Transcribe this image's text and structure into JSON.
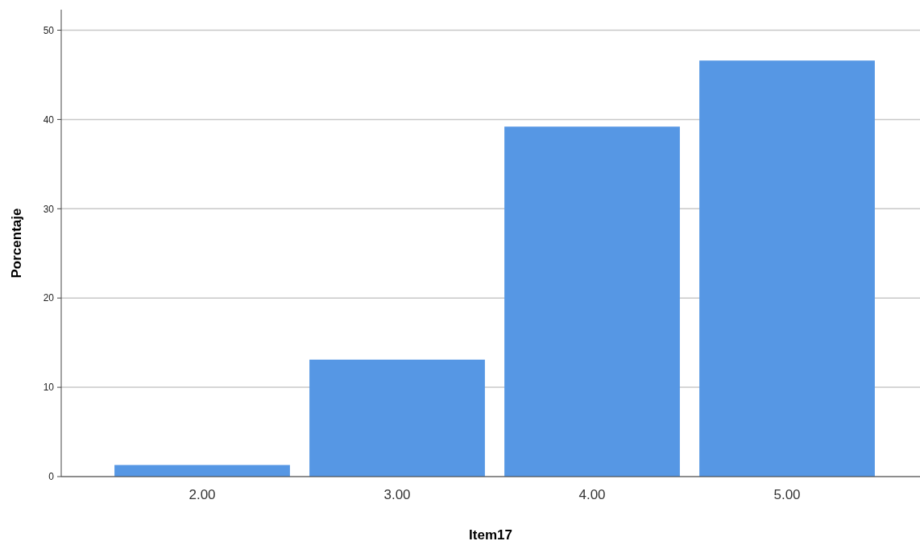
{
  "chart_data": {
    "type": "bar",
    "xlabel": "Item17",
    "ylabel": "Porcentaje",
    "categories": [
      "2.00",
      "3.00",
      "4.00",
      "5.00"
    ],
    "values": [
      1.3,
      13.1,
      39.2,
      46.6
    ],
    "color": "#5697e4",
    "ylim": [
      0,
      52.3
    ],
    "yticks": [
      0,
      10,
      20,
      30,
      40,
      50
    ],
    "grid": "y"
  }
}
